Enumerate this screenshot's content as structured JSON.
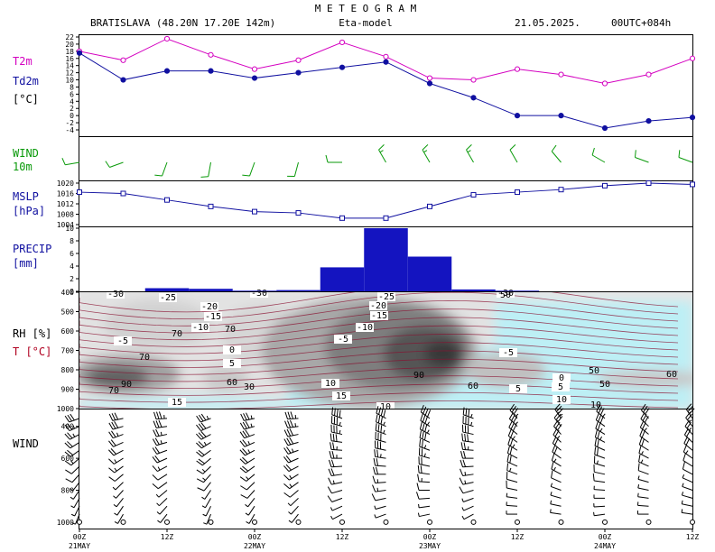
{
  "header": {
    "title": "M E T E O G R A M",
    "station": "BRATISLAVA (48.20N 17.20E  142m)",
    "model": "Eta-model",
    "date": "21.05.2025.",
    "run": "00UTC+084h"
  },
  "panels": {
    "temp": {
      "label1": "T2m",
      "label2": "Td2m",
      "label3": "[°C]",
      "label1_color": "#d400c0",
      "label2_color": "#1010a0"
    },
    "wind10": {
      "label1": "WIND",
      "label2": "10m",
      "color": "#0a9a0a"
    },
    "mslp": {
      "label1": "MSLP",
      "label2": "[hPa]",
      "color": "#1010a0"
    },
    "precip": {
      "label1": "PRECIP",
      "label2": "[mm]",
      "color": "#1010a0"
    },
    "rh": {
      "label1": "RH [%]",
      "label2": "T [°C]",
      "color1": "#000",
      "color2": "#b00020"
    },
    "windprof": {
      "label1": "WIND"
    }
  },
  "x_axis": {
    "ticks": [
      "00Z",
      "12Z",
      "00Z",
      "12Z",
      "00Z",
      "12Z",
      "00Z",
      "12Z"
    ],
    "days": [
      "21MAY",
      "22MAY",
      "23MAY",
      "24MAY"
    ],
    "hours": [
      0,
      12,
      24,
      36,
      48,
      60,
      72,
      84
    ]
  },
  "chart_data": [
    {
      "type": "line",
      "name": "temperature",
      "x_hours": [
        0,
        6,
        12,
        18,
        24,
        30,
        36,
        42,
        48,
        54,
        60,
        66,
        72,
        78,
        84
      ],
      "ylim": [
        -4,
        22
      ],
      "yticks": [
        "22",
        "20",
        "18",
        "16",
        "14",
        "12",
        "10",
        "8",
        "6",
        "4",
        "2",
        "0",
        "-2",
        "-4"
      ],
      "series": [
        {
          "name": "T2m",
          "values": [
            18,
            15.5,
            21.5,
            17,
            13,
            15.5,
            20.5,
            16.5,
            10.5,
            10,
            13,
            11.5,
            9,
            11.5,
            16
          ]
        },
        {
          "name": "Td2m",
          "values": [
            17.5,
            10,
            12.5,
            12.5,
            10.5,
            12,
            13.5,
            15,
            9,
            5,
            0,
            0,
            -3.5,
            -1.5,
            -0.5
          ]
        }
      ]
    },
    {
      "type": "line",
      "name": "mslp",
      "x_hours": [
        0,
        6,
        12,
        18,
        24,
        30,
        36,
        42,
        48,
        54,
        60,
        66,
        72,
        78,
        84
      ],
      "ylim": [
        1004,
        1020
      ],
      "yticks": [
        "1020",
        "1016",
        "1012",
        "1008",
        "1004"
      ],
      "values": [
        1016.5,
        1016,
        1013.5,
        1011,
        1009,
        1008.5,
        1006.5,
        1006.5,
        1011,
        1015.5,
        1016.5,
        1017.5,
        1019,
        1020,
        1019.5
      ]
    },
    {
      "type": "bar",
      "name": "precip",
      "bins_start_hour": [
        9,
        15,
        21,
        27,
        33,
        39,
        45,
        51,
        57,
        63
      ],
      "bin_width_hours": 6,
      "ylim": [
        0,
        10
      ],
      "yticks": [
        "10",
        "8",
        "6",
        "4",
        "2",
        "0"
      ],
      "values": [
        0.5,
        0.4,
        0.1,
        0.2,
        3.8,
        10,
        5.5,
        0.3,
        0.1,
        0
      ]
    }
  ],
  "wind10": {
    "x_hours": [
      0,
      6,
      12,
      18,
      24,
      30,
      36,
      42,
      48,
      54,
      60,
      66,
      72,
      78,
      84
    ],
    "dir": [
      260,
      250,
      200,
      190,
      200,
      195,
      270,
      330,
      330,
      330,
      330,
      320,
      300,
      290,
      290
    ],
    "spd": [
      10,
      10,
      10,
      10,
      10,
      10,
      10,
      15,
      15,
      15,
      10,
      10,
      10,
      10,
      10
    ]
  },
  "rh_panel": {
    "yticks": [
      "400",
      "500",
      "600",
      "700",
      "800",
      "900",
      "1000"
    ],
    "temp_labels": [
      "-30",
      "-25",
      "-20",
      "-15",
      "-10",
      "-5",
      "0",
      "5",
      "10",
      "15",
      "-25",
      "-20",
      "-15",
      "-10",
      "-5",
      "5",
      "10",
      "15",
      "-5",
      "0",
      "5",
      "10",
      "-30",
      "-30"
    ],
    "rh_labels": [
      "70",
      "70",
      "90",
      "30",
      "60",
      "90",
      "50",
      "60",
      "50",
      "50",
      "60",
      "70",
      "70",
      "10"
    ]
  },
  "wind_profile": {
    "yticks": [
      "400",
      "600",
      "800",
      "1000"
    ]
  }
}
